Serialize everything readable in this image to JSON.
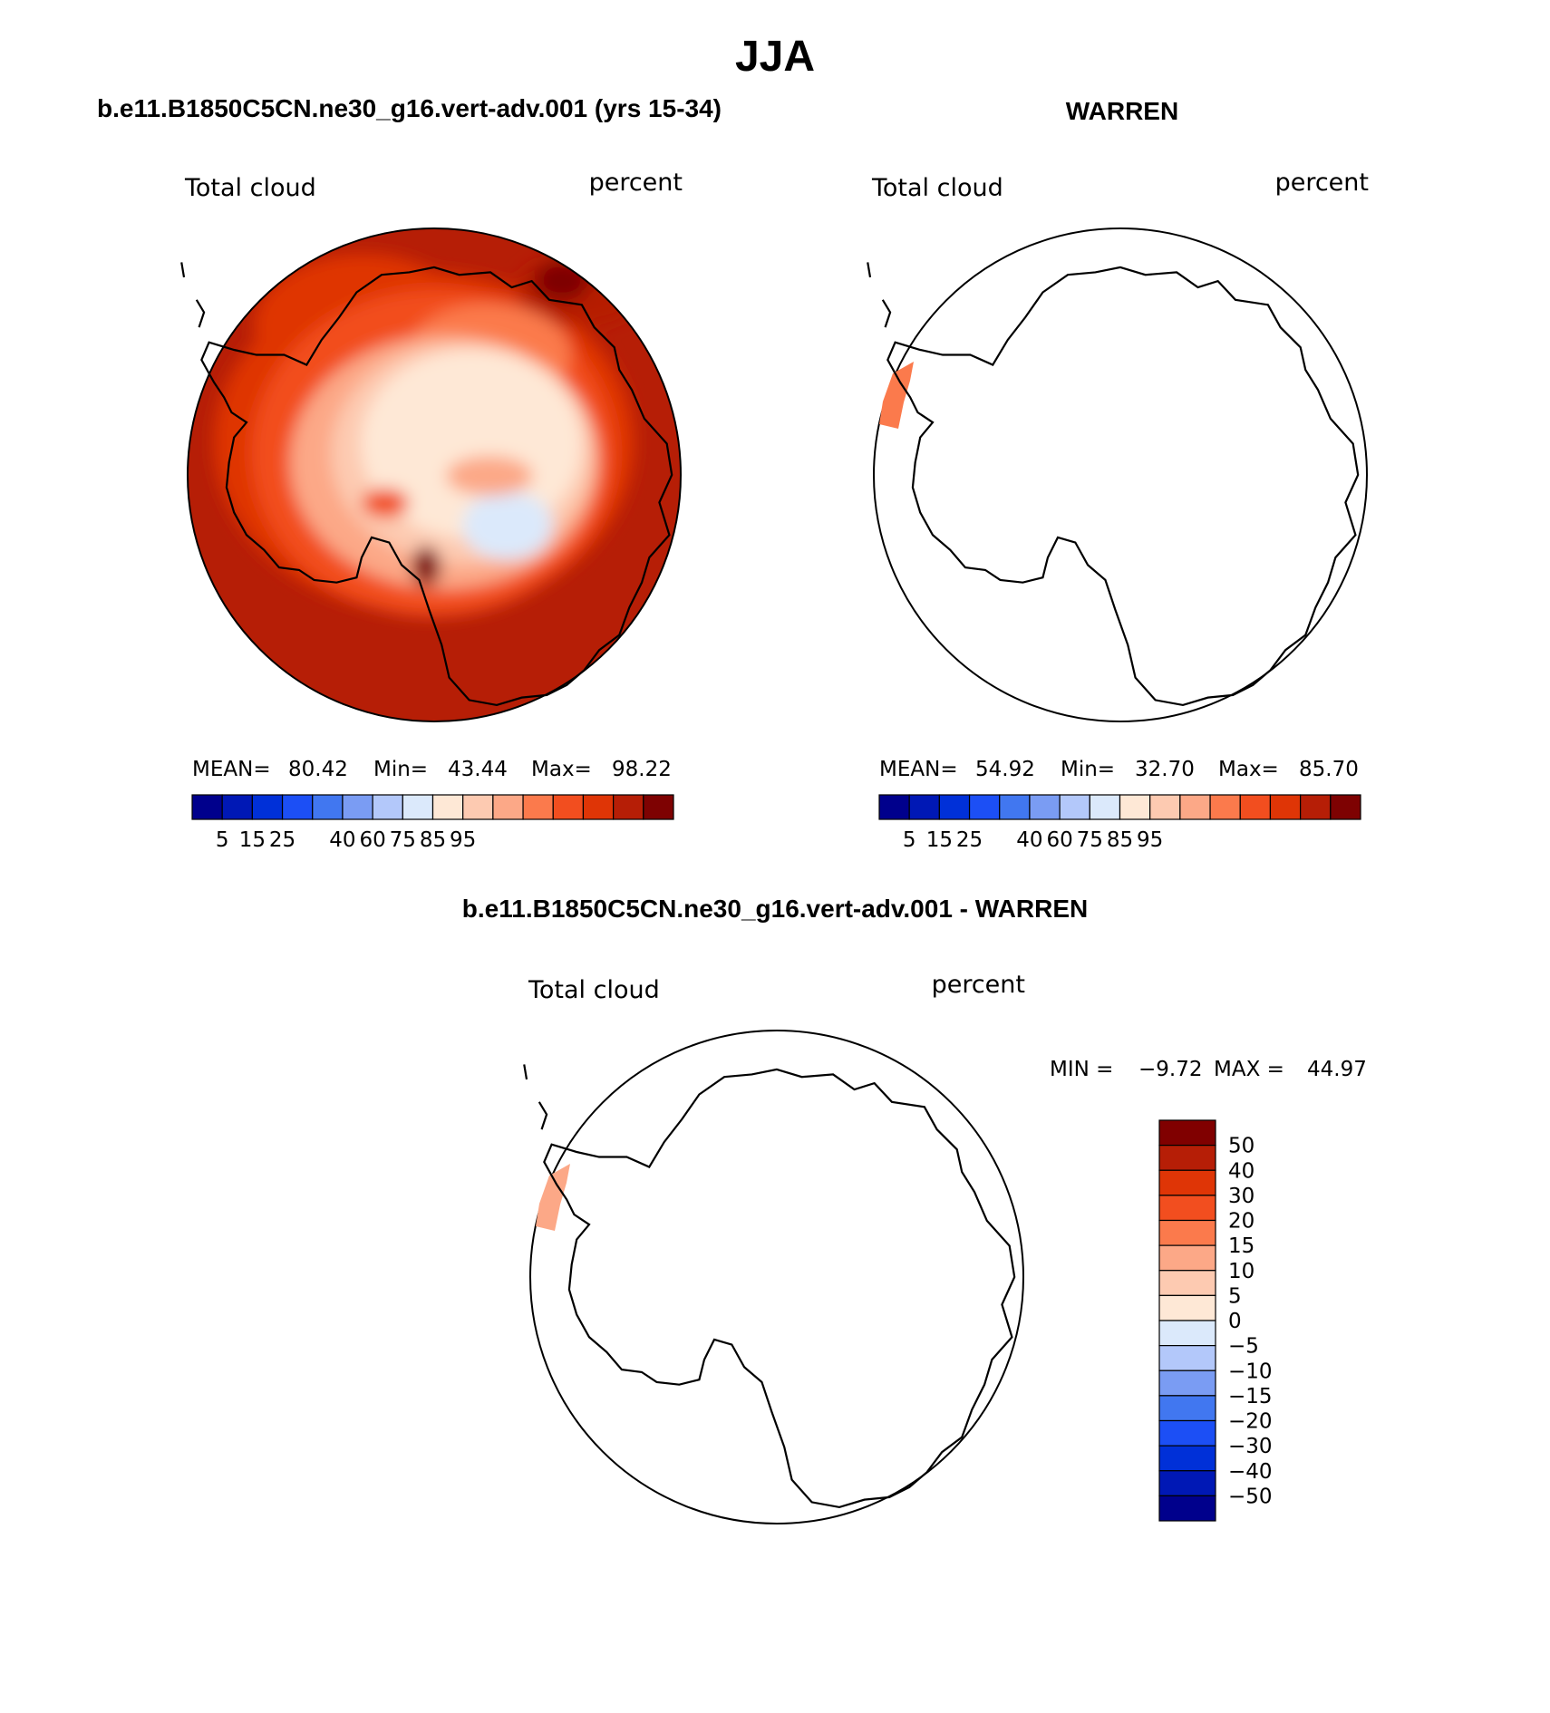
{
  "figure": {
    "season": "JJA",
    "panels": [
      {
        "id": "model",
        "title": "b.e11.B1850C5CN.ne30_g16.vert-adv.001 (yrs 15-34)",
        "field_label": "Total cloud",
        "units_label": "percent",
        "stats": {
          "mean_label": "MEAN=",
          "mean": "80.42",
          "min_label": "Min=",
          "min": "43.44",
          "max_label": "Max=",
          "max": "98.22"
        }
      },
      {
        "id": "obs",
        "title": "WARREN",
        "field_label": "Total cloud",
        "units_label": "percent",
        "stats": {
          "mean_label": "MEAN=",
          "mean": "54.92",
          "min_label": "Min=",
          "min": "32.70",
          "max_label": "Max=",
          "max": "85.70"
        }
      },
      {
        "id": "diff",
        "title": "b.e11.B1850C5CN.ne30_g16.vert-adv.001 - WARREN",
        "field_label": "Total cloud",
        "units_label": "percent",
        "stats": {
          "min_label": "MIN =",
          "min": "−9.72",
          "max_label": "MAX =",
          "max": "44.97"
        }
      }
    ],
    "abs_colorbar": {
      "colors": [
        "#00008c",
        "#0018b5",
        "#0030d8",
        "#1c4ff5",
        "#4177f0",
        "#7a9cf3",
        "#b3c8fa",
        "#dbe9fb",
        "#fee8d6",
        "#fdcab1",
        "#fca887",
        "#fb7a4c",
        "#f24e1f",
        "#df3506",
        "#b61e06",
        "#7e0202"
      ],
      "tick_labels": [
        "5",
        "15",
        "25",
        "40",
        "60",
        "75",
        "85",
        "95"
      ]
    },
    "diff_colorbar": {
      "colors": [
        "#800000",
        "#b61e06",
        "#df3506",
        "#f24e1f",
        "#fb7a4c",
        "#fca887",
        "#fdcab1",
        "#fee8d6",
        "#dbe9fb",
        "#b3c8fa",
        "#7a9cf3",
        "#4177f0",
        "#1c4ff5",
        "#0030d8",
        "#0018b5",
        "#00008c"
      ],
      "tick_labels": [
        "50",
        "40",
        "30",
        "20",
        "15",
        "10",
        "5",
        "0",
        "−5",
        "−10",
        "−15",
        "−20",
        "−30",
        "−40",
        "−50"
      ]
    }
  }
}
